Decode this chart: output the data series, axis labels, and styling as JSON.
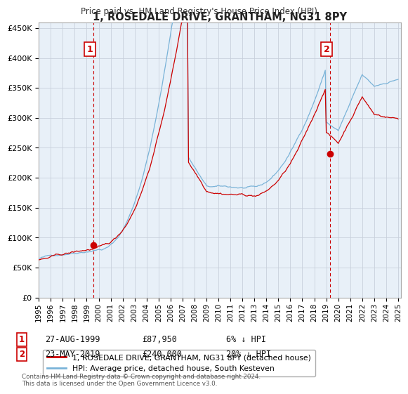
{
  "title": "1, ROSEDALE DRIVE, GRANTHAM, NG31 8PY",
  "subtitle": "Price paid vs. HM Land Registry's House Price Index (HPI)",
  "legend_line1": "1, ROSEDALE DRIVE, GRANTHAM, NG31 8PY (detached house)",
  "legend_line2": "HPI: Average price, detached house, South Kesteven",
  "footnote": "Contains HM Land Registry data © Crown copyright and database right 2024.\nThis data is licensed under the Open Government Licence v3.0.",
  "transaction1_date": "27-AUG-1999",
  "transaction1_price": "£87,950",
  "transaction1_hpi": "6% ↓ HPI",
  "transaction2_date": "23-MAY-2019",
  "transaction2_price": "£240,000",
  "transaction2_hpi": "20% ↓ HPI",
  "hpi_line_color": "#7ab3d8",
  "price_line_color": "#cc0000",
  "vline_color": "#cc0000",
  "dot_color": "#cc0000",
  "label_box_edgecolor": "#cc0000",
  "plot_bg_color": "#e8f0f8",
  "background_color": "#ffffff",
  "grid_color": "#c8d0dc"
}
